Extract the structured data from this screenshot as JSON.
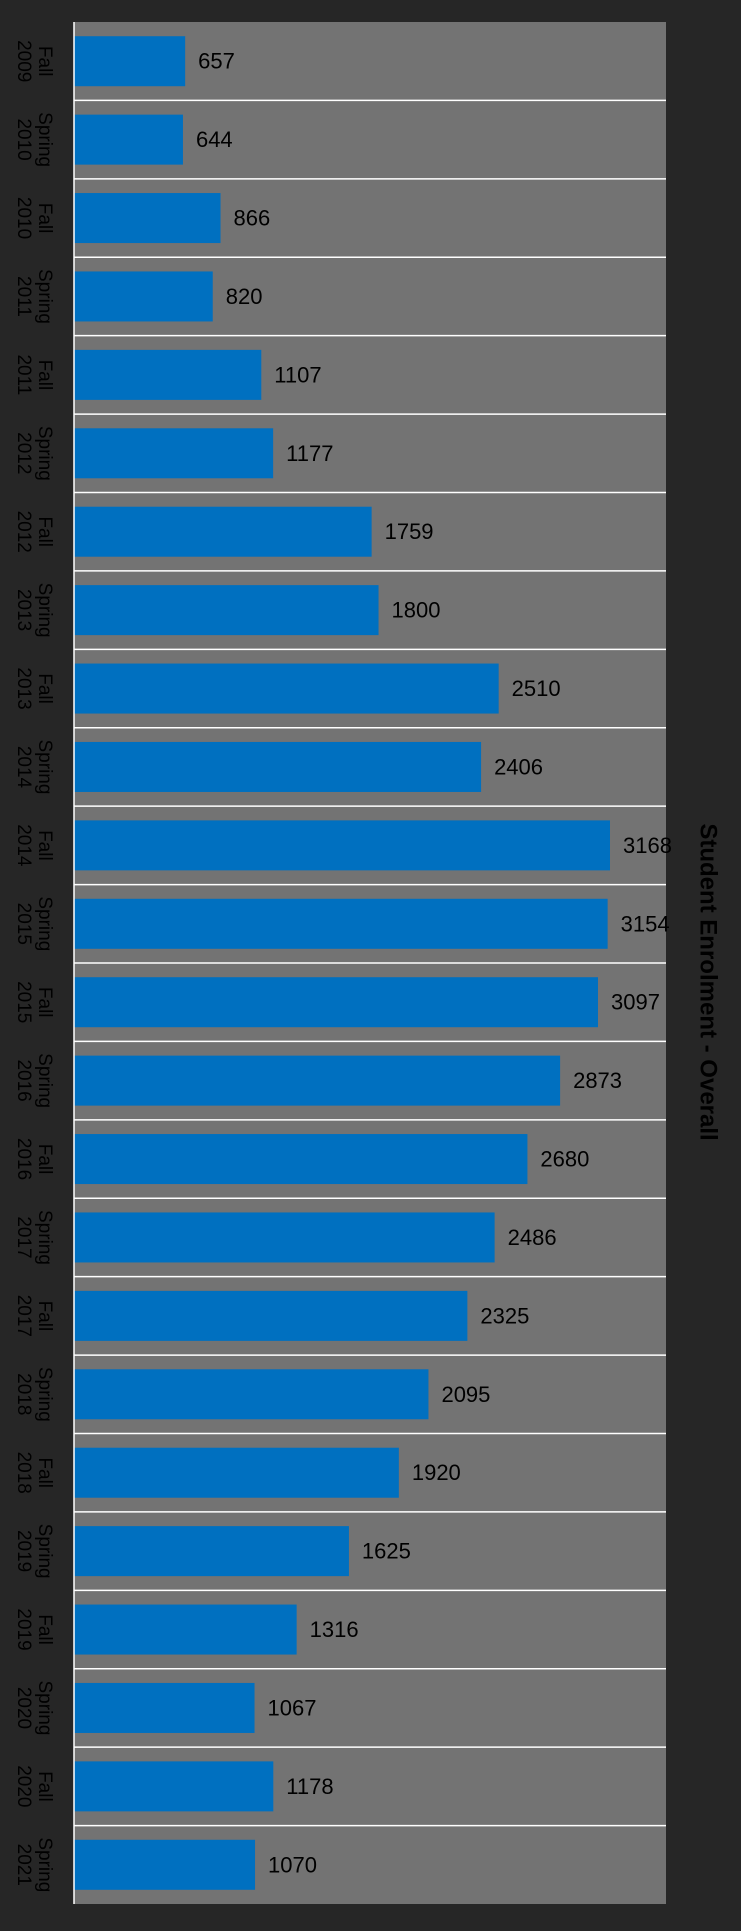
{
  "chart_data": {
    "type": "bar",
    "orientation": "horizontal",
    "title": "Student Enrolment - Overall",
    "categories": [
      "Fall 2009",
      "Spring 2010",
      "Fall 2010",
      "Spring 2011",
      "Fall 2011",
      "Spring 2012",
      "Fall 2012",
      "Spring 2013",
      "Fall 2013",
      "Spring 2014",
      "Fall 2014",
      "Spring 2015",
      "Fall 2015",
      "Spring 2016",
      "Fall 2016",
      "Spring 2017",
      "Fall 2017",
      "Spring 2018",
      "Fall 2018",
      "Spring 2019",
      "Fall 2019",
      "Spring 2020",
      "Fall 2020",
      "Spring 2021"
    ],
    "values": [
      657,
      644,
      866,
      820,
      1107,
      1177,
      1759,
      1800,
      2510,
      2406,
      3168,
      3154,
      3097,
      2873,
      2680,
      2486,
      2325,
      2095,
      1920,
      1625,
      1316,
      1067,
      1178,
      1070
    ],
    "xlim": [
      0,
      3500
    ],
    "data_labels": true,
    "grid": false,
    "legend": "none",
    "colors": {
      "page_background": "#262626",
      "plot_background": "#737373",
      "bar": "#0070C0",
      "separator": "#FFFFFF",
      "label_text": "#000000"
    }
  }
}
